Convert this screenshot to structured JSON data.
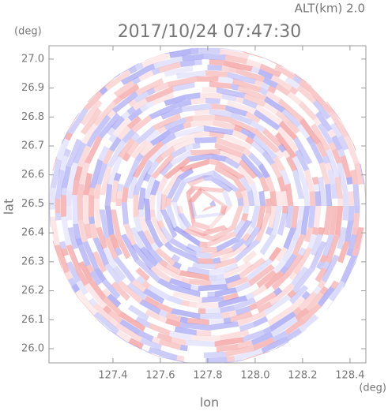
{
  "chart_data": {
    "type": "radar-image",
    "title": "2017/10/24 07:47:30",
    "annotation": "ALT(km) 2.0",
    "y_unit": "(deg)",
    "x_unit": "(deg)",
    "xlabel": "lon",
    "ylabel": "lat",
    "xlim": [
      127.13,
      128.467
    ],
    "ylim": [
      25.951,
      27.046
    ],
    "xticks": [
      127.4,
      127.6,
      127.8,
      {
        "value": 128,
        "label": "128.0"
      },
      128.2,
      128.4
    ],
    "yticks": [
      {
        "value": 26,
        "label": "26.0"
      },
      26.1,
      26.2,
      26.3,
      26.4,
      26.5,
      26.6,
      26.7,
      26.8,
      26.9,
      {
        "value": 27,
        "label": "27.0"
      }
    ],
    "colors": [
      "#f08080",
      "#8080f0"
    ]
  }
}
